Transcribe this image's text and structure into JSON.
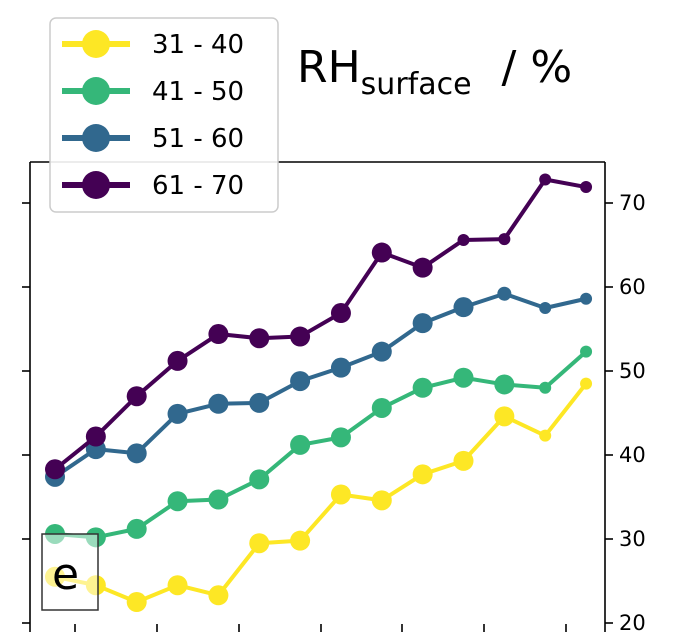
{
  "chart_data": {
    "type": "line",
    "title_main": "RH",
    "title_sub": "surface",
    "title_unit": "/ %",
    "panel_label": "e",
    "ylim": [
      20,
      75
    ],
    "y_ticks": [
      20,
      30,
      40,
      50,
      60,
      70
    ],
    "y_axis_side": "right",
    "grid": false,
    "legend_position": "top-left",
    "x": [
      0,
      1,
      2,
      3,
      4,
      5,
      6,
      7,
      8,
      9,
      10,
      11,
      12,
      13
    ],
    "series": [
      {
        "name": "31 - 40",
        "color": "#fde725",
        "values": [
          25.5,
          24.5,
          22.5,
          24.5,
          23.3,
          29.5,
          29.8,
          35.3,
          34.6,
          37.7,
          39.3,
          44.6,
          42.3,
          48.5
        ]
      },
      {
        "name": "41 - 50",
        "color": "#35b779",
        "values": [
          30.6,
          30.2,
          31.2,
          34.5,
          34.7,
          37.1,
          41.2,
          42.1,
          45.6,
          48.0,
          49.2,
          48.4,
          48.0,
          52.3
        ]
      },
      {
        "name": "51 - 60",
        "color": "#31688e",
        "values": [
          37.4,
          40.7,
          40.2,
          44.9,
          46.1,
          46.2,
          48.8,
          50.4,
          52.3,
          55.7,
          57.6,
          59.2,
          57.5,
          58.6
        ]
      },
      {
        "name": "61 - 70",
        "color": "#440154",
        "values": [
          38.3,
          42.2,
          47.0,
          51.2,
          54.4,
          53.9,
          54.1,
          56.9,
          64.1,
          62.3,
          65.6,
          65.7,
          72.8,
          71.9
        ]
      }
    ]
  }
}
